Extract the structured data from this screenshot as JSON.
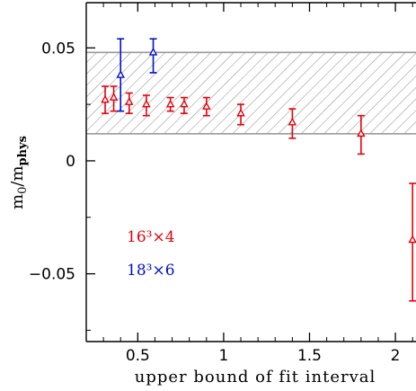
{
  "chart_data": {
    "type": "scatter",
    "xlabel": "upper bound of fit interval",
    "ylabel_main": "m",
    "ylabel_sub0": "0",
    "ylabel_slash": "/m",
    "ylabel_sub1": "phys",
    "xlim": [
      0.2,
      2.12
    ],
    "ylim": [
      -0.08,
      0.07
    ],
    "xticks": [
      0.5,
      1,
      1.5,
      2
    ],
    "xtick_labels": [
      "0.5",
      "1",
      "1.5",
      "2"
    ],
    "yticks": [
      -0.05,
      0,
      0.05
    ],
    "ytick_labels": [
      "−0.05",
      "0",
      "0.05"
    ],
    "band": {
      "ymin": 0.012,
      "ymax": 0.048,
      "color": "#888888"
    },
    "grid": false,
    "legend_position": "lower-left",
    "series": [
      {
        "name": "16³×4",
        "color": "#e8000b",
        "points": [
          {
            "x": 0.31,
            "y": 0.027,
            "lo": 0.021,
            "hi": 0.033
          },
          {
            "x": 0.36,
            "y": 0.028,
            "lo": 0.022,
            "hi": 0.033
          },
          {
            "x": 0.45,
            "y": 0.026,
            "lo": 0.021,
            "hi": 0.03
          },
          {
            "x": 0.55,
            "y": 0.025,
            "lo": 0.02,
            "hi": 0.029
          },
          {
            "x": 0.69,
            "y": 0.025,
            "lo": 0.022,
            "hi": 0.028
          },
          {
            "x": 0.77,
            "y": 0.025,
            "lo": 0.021,
            "hi": 0.028
          },
          {
            "x": 0.9,
            "y": 0.024,
            "lo": 0.02,
            "hi": 0.028
          },
          {
            "x": 1.1,
            "y": 0.021,
            "lo": 0.016,
            "hi": 0.025
          },
          {
            "x": 1.4,
            "y": 0.017,
            "lo": 0.01,
            "hi": 0.023
          },
          {
            "x": 1.8,
            "y": 0.012,
            "lo": 0.003,
            "hi": 0.02
          },
          {
            "x": 2.1,
            "y": -0.035,
            "lo": -0.062,
            "hi": -0.01
          }
        ]
      },
      {
        "name": "18³×6",
        "color": "#0010d0",
        "points": [
          {
            "x": 0.4,
            "y": 0.038,
            "lo": 0.022,
            "hi": 0.054
          },
          {
            "x": 0.59,
            "y": 0.048,
            "lo": 0.039,
            "hi": 0.054
          }
        ]
      }
    ]
  }
}
